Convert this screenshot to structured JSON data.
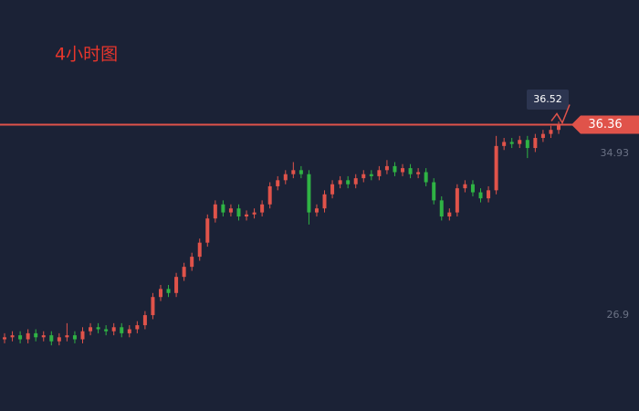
{
  "chart_data": {
    "type": "candlestick",
    "title": "4小时图",
    "up_color": "#e0534a",
    "down_color": "#2fb344",
    "line_color": "#e0534a",
    "ylim": [
      22.14,
      42.55
    ],
    "yticks": [
      34.93,
      26.9
    ],
    "open": [
      25.7,
      25.8,
      25.9,
      25.7,
      26.0,
      25.8,
      25.9,
      25.6,
      25.8,
      25.9,
      25.7,
      26.1,
      26.3,
      26.2,
      26.1,
      26.3,
      26.0,
      26.2,
      26.4,
      26.9,
      27.8,
      28.2,
      28.0,
      28.8,
      29.3,
      29.8,
      30.5,
      31.7,
      32.4,
      32.0,
      32.2,
      31.8,
      31.9,
      32.0,
      32.4,
      33.3,
      33.6,
      33.9,
      34.1,
      33.9,
      32.0,
      32.2,
      32.9,
      33.4,
      33.6,
      33.4,
      33.7,
      33.9,
      33.8,
      34.1,
      34.3,
      34.0,
      34.2,
      33.9,
      34.0,
      33.5,
      32.6,
      31.8,
      32.0,
      33.2,
      33.4,
      33.0,
      32.7,
      33.1,
      35.3,
      35.5,
      35.4,
      35.6,
      35.2,
      35.7,
      35.9,
      36.1
    ],
    "high": [
      26.0,
      26.1,
      26.1,
      26.2,
      26.2,
      26.1,
      26.1,
      26.0,
      26.5,
      26.1,
      26.3,
      26.5,
      26.5,
      26.4,
      26.5,
      26.5,
      26.4,
      26.6,
      27.1,
      28.0,
      28.4,
      28.4,
      29.0,
      29.5,
      30.0,
      30.7,
      31.9,
      32.6,
      32.6,
      32.4,
      32.4,
      32.1,
      32.2,
      32.6,
      33.5,
      33.8,
      34.1,
      34.5,
      34.3,
      34.1,
      32.4,
      33.1,
      33.6,
      33.8,
      33.8,
      33.9,
      34.1,
      34.1,
      34.3,
      34.6,
      34.5,
      34.4,
      34.4,
      34.2,
      34.2,
      33.7,
      32.8,
      32.2,
      33.4,
      33.6,
      33.6,
      33.2,
      33.3,
      35.8,
      35.7,
      35.7,
      35.8,
      35.8,
      35.9,
      36.1,
      36.3,
      36.52
    ],
    "low": [
      25.5,
      25.6,
      25.5,
      25.5,
      25.6,
      25.6,
      25.4,
      25.4,
      25.6,
      25.5,
      25.5,
      25.9,
      26.0,
      25.9,
      25.9,
      25.8,
      25.8,
      26.0,
      26.2,
      26.7,
      27.6,
      27.8,
      27.8,
      28.6,
      29.1,
      29.6,
      30.3,
      31.5,
      31.8,
      31.8,
      31.6,
      31.6,
      31.7,
      31.8,
      32.2,
      33.1,
      33.4,
      33.7,
      33.7,
      31.4,
      31.8,
      32.0,
      32.7,
      33.2,
      33.2,
      33.2,
      33.5,
      33.6,
      33.6,
      33.9,
      33.8,
      33.8,
      33.7,
      33.7,
      33.3,
      32.4,
      31.6,
      31.6,
      31.8,
      33.0,
      32.8,
      32.5,
      32.5,
      32.9,
      35.1,
      35.2,
      35.2,
      34.7,
      35.0,
      35.5,
      35.7,
      35.9
    ],
    "close": [
      25.8,
      25.9,
      25.7,
      26.0,
      25.8,
      25.9,
      25.6,
      25.8,
      25.9,
      25.7,
      26.1,
      26.3,
      26.2,
      26.1,
      26.3,
      26.0,
      26.2,
      26.4,
      26.9,
      27.8,
      28.2,
      28.0,
      28.8,
      29.3,
      29.8,
      30.5,
      31.7,
      32.4,
      32.0,
      32.2,
      31.8,
      31.9,
      32.0,
      32.4,
      33.3,
      33.6,
      33.9,
      34.1,
      33.9,
      32.0,
      32.2,
      32.9,
      33.4,
      33.6,
      33.4,
      33.7,
      33.9,
      33.8,
      34.1,
      34.3,
      34.0,
      34.2,
      33.9,
      34.0,
      33.5,
      32.6,
      31.8,
      32.0,
      33.2,
      33.4,
      33.0,
      32.7,
      33.1,
      35.3,
      35.5,
      35.4,
      35.6,
      35.2,
      35.7,
      35.9,
      36.1,
      36.36
    ]
  }
}
